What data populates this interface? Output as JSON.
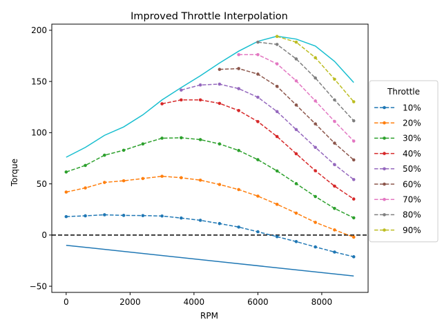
{
  "chart_data": {
    "type": "line",
    "title": "Improved Throttle Interpolation",
    "xlabel": "RPM",
    "ylabel": "Torque",
    "xlim": [
      -450,
      9450
    ],
    "ylim": [
      -56.0,
      206.0
    ],
    "x_ticks": [
      0,
      2000,
      4000,
      6000,
      8000
    ],
    "x_tick_labels": [
      "0",
      "2000",
      "4000",
      "6000",
      "8000"
    ],
    "y_ticks": [
      -50,
      0,
      50,
      100,
      150,
      200
    ],
    "y_tick_labels": [
      "−50",
      "0",
      "50",
      "100",
      "150",
      "200"
    ],
    "grid": false,
    "legend_title": "Throttle",
    "legend_position": "right, outside plot area",
    "reference_lines": [
      {
        "orientation": "horizontal",
        "y": 0,
        "color": "#000000",
        "style": "dashed"
      }
    ],
    "x": [
      0,
      600,
      1200,
      1800,
      2400,
      3000,
      3600,
      4200,
      4800,
      5400,
      6000,
      6600,
      7200,
      7800,
      8400,
      9000
    ],
    "series": [
      {
        "name": "10%",
        "color": "#1f77b4",
        "style": "dashed",
        "marker": "dot",
        "values": [
          18,
          18.8,
          19.8,
          19.2,
          19,
          18.6,
          16.6,
          14.4,
          11.2,
          7.8,
          3.2,
          -1.6,
          -6.4,
          -11.6,
          -16.6,
          -21.2
        ]
      },
      {
        "name": "20%",
        "color": "#ff7f0e",
        "style": "dashed",
        "marker": "dot",
        "values": [
          42,
          46,
          51.4,
          53,
          55.2,
          57.4,
          56,
          53.6,
          49.4,
          44.4,
          38,
          30,
          21.4,
          12.4,
          5,
          -2
        ]
      },
      {
        "name": "30%",
        "color": "#2ca02c",
        "style": "dashed",
        "marker": "dot",
        "values": [
          61.6,
          68,
          78,
          82.8,
          89,
          94.6,
          95,
          93.2,
          89,
          82.6,
          73.6,
          62.6,
          50.2,
          37.6,
          26,
          16.8
        ]
      },
      {
        "name": "40%",
        "color": "#d62728",
        "style": "dashed",
        "marker": "dot",
        "values": [
          null,
          null,
          null,
          null,
          null,
          128.2,
          132,
          132,
          128.6,
          121.6,
          110.8,
          96.2,
          79.4,
          62.8,
          47.8,
          35.2
        ]
      },
      {
        "name": "50%",
        "color": "#9467bd",
        "style": "dashed",
        "marker": "dot",
        "values": [
          null,
          null,
          null,
          null,
          null,
          null,
          141.6,
          146.6,
          147.4,
          143,
          134.6,
          120.6,
          103,
          85.6,
          68.8,
          54.2
        ]
      },
      {
        "name": "60%",
        "color": "#8c564b",
        "style": "dashed",
        "marker": "dot",
        "values": [
          null,
          null,
          null,
          null,
          null,
          null,
          null,
          null,
          161.8,
          162.6,
          157.2,
          145.2,
          127,
          108.6,
          89.8,
          73.4
        ]
      },
      {
        "name": "70%",
        "color": "#e377c2",
        "style": "dashed",
        "marker": "dot",
        "values": [
          null,
          null,
          null,
          null,
          null,
          null,
          null,
          null,
          null,
          176.2,
          176.2,
          167.2,
          150.6,
          131,
          111,
          91.8
        ]
      },
      {
        "name": "80%",
        "color": "#7f7f7f",
        "style": "dashed",
        "marker": "dot",
        "values": [
          null,
          null,
          null,
          null,
          null,
          null,
          null,
          null,
          null,
          null,
          188.4,
          186.2,
          172,
          153.4,
          132,
          111.6
        ]
      },
      {
        "name": "90%",
        "color": "#bcbd22",
        "style": "dashed",
        "marker": "dot",
        "values": [
          null,
          null,
          null,
          null,
          null,
          null,
          null,
          null,
          null,
          null,
          null,
          194,
          188.4,
          173.2,
          152.2,
          130.2
        ]
      }
    ],
    "unlabeled_series": [
      {
        "color": "#17becf",
        "style": "solid",
        "x": [
          0,
          600,
          1200,
          1800,
          2400,
          3000,
          3600,
          4200,
          4800,
          5400,
          6000,
          6600,
          7200,
          7800,
          8400,
          9000
        ],
        "values": [
          76,
          85.6,
          97.4,
          105.6,
          117.4,
          132,
          144,
          155.6,
          168,
          179.6,
          189.2,
          194.2,
          191.4,
          184.6,
          169.6,
          149
        ]
      },
      {
        "color": "#1f77b4",
        "style": "solid",
        "x": [
          0,
          9000
        ],
        "values": [
          -10,
          -40
        ]
      }
    ]
  }
}
